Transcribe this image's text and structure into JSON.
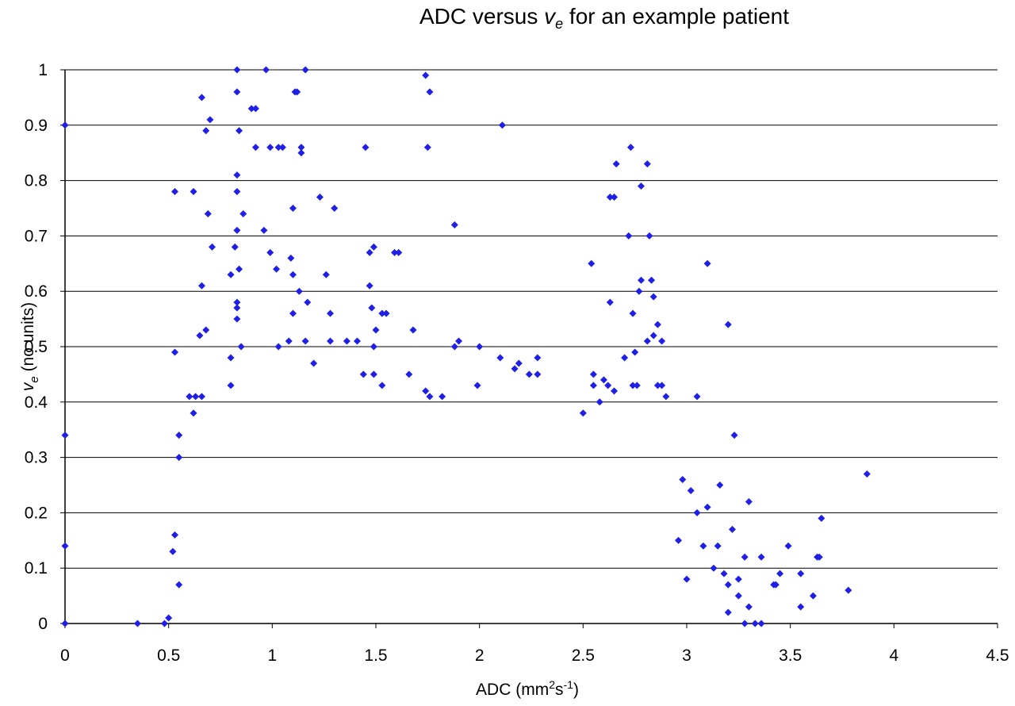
{
  "chart_data": {
    "type": "scatter",
    "title_main": "ADC versus ",
    "title_var": "v",
    "title_sub": "e",
    "title_rest": " for an example patient",
    "xlabel_main": "ADC (mm",
    "xlabel_sup1": "2",
    "xlabel_mid": "s",
    "xlabel_sup2": "-1",
    "xlabel_end": ")",
    "ylabel_var": "v",
    "ylabel_sub": "e",
    "ylabel_rest": " (no units)",
    "xlim": [
      0,
      4.5
    ],
    "ylim": [
      0,
      1
    ],
    "x_ticks": [
      "0",
      "0.5",
      "1",
      "1.5",
      "2",
      "2.5",
      "3",
      "3.5",
      "4",
      "4.5"
    ],
    "y_ticks": [
      "0",
      "0.1",
      "0.2",
      "0.3",
      "0.4",
      "0.5",
      "0.6",
      "0.7",
      "0.8",
      "0.9",
      "1"
    ],
    "grid": "horizontal",
    "marker_color": "#1F1FE6",
    "marker": "diamond",
    "points": [
      [
        0,
        0.9
      ],
      [
        0,
        0.34
      ],
      [
        0,
        0.14
      ],
      [
        0,
        0
      ],
      [
        0.35,
        0
      ],
      [
        0.48,
        0
      ],
      [
        0.5,
        0.01
      ],
      [
        0.53,
        0.78
      ],
      [
        0.53,
        0.49
      ],
      [
        0.55,
        0.3
      ],
      [
        0.55,
        0.34
      ],
      [
        0.52,
        0.13
      ],
      [
        0.53,
        0.16
      ],
      [
        0.55,
        0.07
      ],
      [
        0.62,
        0.78
      ],
      [
        0.66,
        0.95
      ],
      [
        0.68,
        0.89
      ],
      [
        0.7,
        0.91
      ],
      [
        0.69,
        0.74
      ],
      [
        0.71,
        0.68
      ],
      [
        0.66,
        0.61
      ],
      [
        0.6,
        0.41
      ],
      [
        0.63,
        0.41
      ],
      [
        0.66,
        0.41
      ],
      [
        0.68,
        0.53
      ],
      [
        0.65,
        0.52
      ],
      [
        0.62,
        0.38
      ],
      [
        0.83,
        1.0
      ],
      [
        0.97,
        1.0
      ],
      [
        1.16,
        1.0
      ],
      [
        0.83,
        0.96
      ],
      [
        0.84,
        0.89
      ],
      [
        0.9,
        0.93
      ],
      [
        0.92,
        0.93
      ],
      [
        0.92,
        0.86
      ],
      [
        0.83,
        0.81
      ],
      [
        0.83,
        0.78
      ],
      [
        0.86,
        0.74
      ],
      [
        0.83,
        0.71
      ],
      [
        0.82,
        0.68
      ],
      [
        0.8,
        0.63
      ],
      [
        0.84,
        0.64
      ],
      [
        0.83,
        0.58
      ],
      [
        0.83,
        0.57
      ],
      [
        0.83,
        0.55
      ],
      [
        0.85,
        0.5
      ],
      [
        0.8,
        0.48
      ],
      [
        0.8,
        0.43
      ],
      [
        0.99,
        0.86
      ],
      [
        1.03,
        0.86
      ],
      [
        1.05,
        0.86
      ],
      [
        1.1,
        0.75
      ],
      [
        1.11,
        0.96
      ],
      [
        1.12,
        0.96
      ],
      [
        1.14,
        0.85
      ],
      [
        1.14,
        0.86
      ],
      [
        0.96,
        0.71
      ],
      [
        0.99,
        0.67
      ],
      [
        1.02,
        0.64
      ],
      [
        1.09,
        0.66
      ],
      [
        1.1,
        0.63
      ],
      [
        1.13,
        0.6
      ],
      [
        1.17,
        0.58
      ],
      [
        1.1,
        0.56
      ],
      [
        1.03,
        0.5
      ],
      [
        1.08,
        0.51
      ],
      [
        1.16,
        0.51
      ],
      [
        1.2,
        0.47
      ],
      [
        1.23,
        0.77
      ],
      [
        1.3,
        0.75
      ],
      [
        1.26,
        0.63
      ],
      [
        1.28,
        0.56
      ],
      [
        1.28,
        0.51
      ],
      [
        1.36,
        0.51
      ],
      [
        1.41,
        0.51
      ],
      [
        1.45,
        0.86
      ],
      [
        1.47,
        0.67
      ],
      [
        1.49,
        0.68
      ],
      [
        1.47,
        0.61
      ],
      [
        1.48,
        0.57
      ],
      [
        1.53,
        0.56
      ],
      [
        1.55,
        0.56
      ],
      [
        1.5,
        0.53
      ],
      [
        1.49,
        0.5
      ],
      [
        1.59,
        0.67
      ],
      [
        1.61,
        0.67
      ],
      [
        1.53,
        0.43
      ],
      [
        1.49,
        0.45
      ],
      [
        1.44,
        0.45
      ],
      [
        1.74,
        0.99
      ],
      [
        1.76,
        0.96
      ],
      [
        1.75,
        0.86
      ],
      [
        1.88,
        0.72
      ],
      [
        2.11,
        0.9
      ],
      [
        1.68,
        0.53
      ],
      [
        1.66,
        0.45
      ],
      [
        1.74,
        0.42
      ],
      [
        1.76,
        0.41
      ],
      [
        1.82,
        0.41
      ],
      [
        1.88,
        0.5
      ],
      [
        1.9,
        0.51
      ],
      [
        2.0,
        0.5
      ],
      [
        1.99,
        0.43
      ],
      [
        2.1,
        0.48
      ],
      [
        2.17,
        0.46
      ],
      [
        2.19,
        0.47
      ],
      [
        2.24,
        0.45
      ],
      [
        2.28,
        0.48
      ],
      [
        2.28,
        0.45
      ],
      [
        2.54,
        0.65
      ],
      [
        2.63,
        0.77
      ],
      [
        2.65,
        0.77
      ],
      [
        2.66,
        0.83
      ],
      [
        2.73,
        0.86
      ],
      [
        2.72,
        0.7
      ],
      [
        2.78,
        0.79
      ],
      [
        2.81,
        0.83
      ],
      [
        2.82,
        0.7
      ],
      [
        2.63,
        0.58
      ],
      [
        2.77,
        0.6
      ],
      [
        2.78,
        0.62
      ],
      [
        2.83,
        0.62
      ],
      [
        2.74,
        0.56
      ],
      [
        2.84,
        0.59
      ],
      [
        2.86,
        0.54
      ],
      [
        2.84,
        0.52
      ],
      [
        2.88,
        0.51
      ],
      [
        2.81,
        0.51
      ],
      [
        2.75,
        0.49
      ],
      [
        2.7,
        0.48
      ],
      [
        3.1,
        0.65
      ],
      [
        3.2,
        0.54
      ],
      [
        3.05,
        0.41
      ],
      [
        3.23,
        0.34
      ],
      [
        3.87,
        0.27
      ],
      [
        2.9,
        0.41
      ],
      [
        2.55,
        0.45
      ],
      [
        2.55,
        0.43
      ],
      [
        2.6,
        0.44
      ],
      [
        2.62,
        0.43
      ],
      [
        2.65,
        0.42
      ],
      [
        2.58,
        0.4
      ],
      [
        2.5,
        0.38
      ],
      [
        2.74,
        0.43
      ],
      [
        2.76,
        0.43
      ],
      [
        2.86,
        0.43
      ],
      [
        2.88,
        0.43
      ],
      [
        3.16,
        0.25
      ],
      [
        3.3,
        0.22
      ],
      [
        3.22,
        0.17
      ],
      [
        3.15,
        0.14
      ],
      [
        3.18,
        0.09
      ],
      [
        3.2,
        0.07
      ],
      [
        3.25,
        0.05
      ],
      [
        3.28,
        0.12
      ],
      [
        3.36,
        0.12
      ],
      [
        3.45,
        0.09
      ],
      [
        3.42,
        0.07
      ],
      [
        3.43,
        0.07
      ],
      [
        3.49,
        0.14
      ],
      [
        3.55,
        0.09
      ],
      [
        3.55,
        0.03
      ],
      [
        3.61,
        0.05
      ],
      [
        3.63,
        0.12
      ],
      [
        3.64,
        0.12
      ],
      [
        3.65,
        0.19
      ],
      [
        3.78,
        0.06
      ],
      [
        3.3,
        0.03
      ],
      [
        3.25,
        0.08
      ],
      [
        3.2,
        0.02
      ],
      [
        3.13,
        0.1
      ],
      [
        3.08,
        0.14
      ],
      [
        3.05,
        0.2
      ],
      [
        3.1,
        0.21
      ],
      [
        3.28,
        0
      ],
      [
        3.33,
        0
      ],
      [
        3.36,
        0
      ],
      [
        3.0,
        0.08
      ],
      [
        2.96,
        0.15
      ],
      [
        2.98,
        0.26
      ],
      [
        3.02,
        0.24
      ]
    ]
  }
}
